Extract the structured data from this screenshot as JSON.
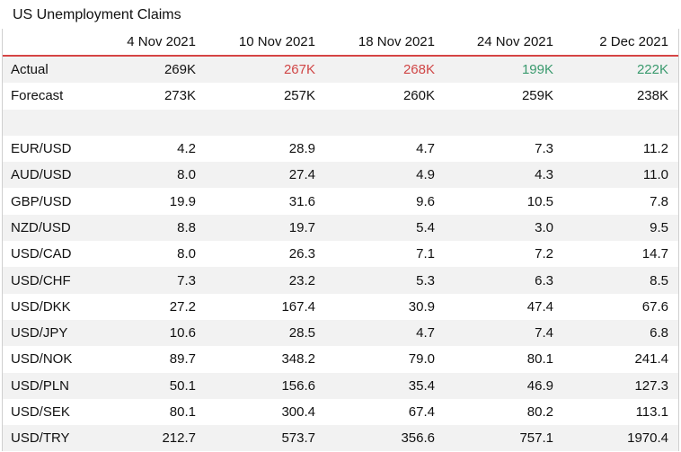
{
  "title": "US Unemployment Claims",
  "columns": [
    "4 Nov 2021",
    "10 Nov 2021",
    "18 Nov 2021",
    "24 Nov 2021",
    "2 Dec 2021"
  ],
  "actual": {
    "label": "Actual",
    "values": [
      "269K",
      "267K",
      "268K",
      "199K",
      "222K"
    ],
    "status": [
      "neutral",
      "negative",
      "negative",
      "positive",
      "positive"
    ]
  },
  "forecast": {
    "label": "Forecast",
    "values": [
      "273K",
      "257K",
      "260K",
      "259K",
      "238K"
    ]
  },
  "colors": {
    "negative": "#d04646",
    "positive": "#3a9a6e",
    "header_rule": "#d64545",
    "stripe": "#f2f2f2"
  },
  "pairs": [
    {
      "label": "EUR/USD",
      "values": [
        "4.2",
        "28.9",
        "4.7",
        "7.3",
        "11.2"
      ]
    },
    {
      "label": "AUD/USD",
      "values": [
        "8.0",
        "27.4",
        "4.9",
        "4.3",
        "11.0"
      ]
    },
    {
      "label": "GBP/USD",
      "values": [
        "19.9",
        "31.6",
        "9.6",
        "10.5",
        "7.8"
      ]
    },
    {
      "label": "NZD/USD",
      "values": [
        "8.8",
        "19.7",
        "5.4",
        "3.0",
        "9.5"
      ]
    },
    {
      "label": "USD/CAD",
      "values": [
        "8.0",
        "26.3",
        "7.1",
        "7.2",
        "14.7"
      ]
    },
    {
      "label": "USD/CHF",
      "values": [
        "7.3",
        "23.2",
        "5.3",
        "6.3",
        "8.5"
      ]
    },
    {
      "label": "USD/DKK",
      "values": [
        "27.2",
        "167.4",
        "30.9",
        "47.4",
        "67.6"
      ]
    },
    {
      "label": "USD/JPY",
      "values": [
        "10.6",
        "28.5",
        "4.7",
        "7.4",
        "6.8"
      ]
    },
    {
      "label": "USD/NOK",
      "values": [
        "89.7",
        "348.2",
        "79.0",
        "80.1",
        "241.4"
      ]
    },
    {
      "label": "USD/PLN",
      "values": [
        "50.1",
        "156.6",
        "35.4",
        "46.9",
        "127.3"
      ]
    },
    {
      "label": "USD/SEK",
      "values": [
        "80.1",
        "300.4",
        "67.4",
        "80.2",
        "113.1"
      ]
    },
    {
      "label": "USD/TRY",
      "values": [
        "212.7",
        "573.7",
        "356.6",
        "757.1",
        "1970.4"
      ]
    }
  ]
}
